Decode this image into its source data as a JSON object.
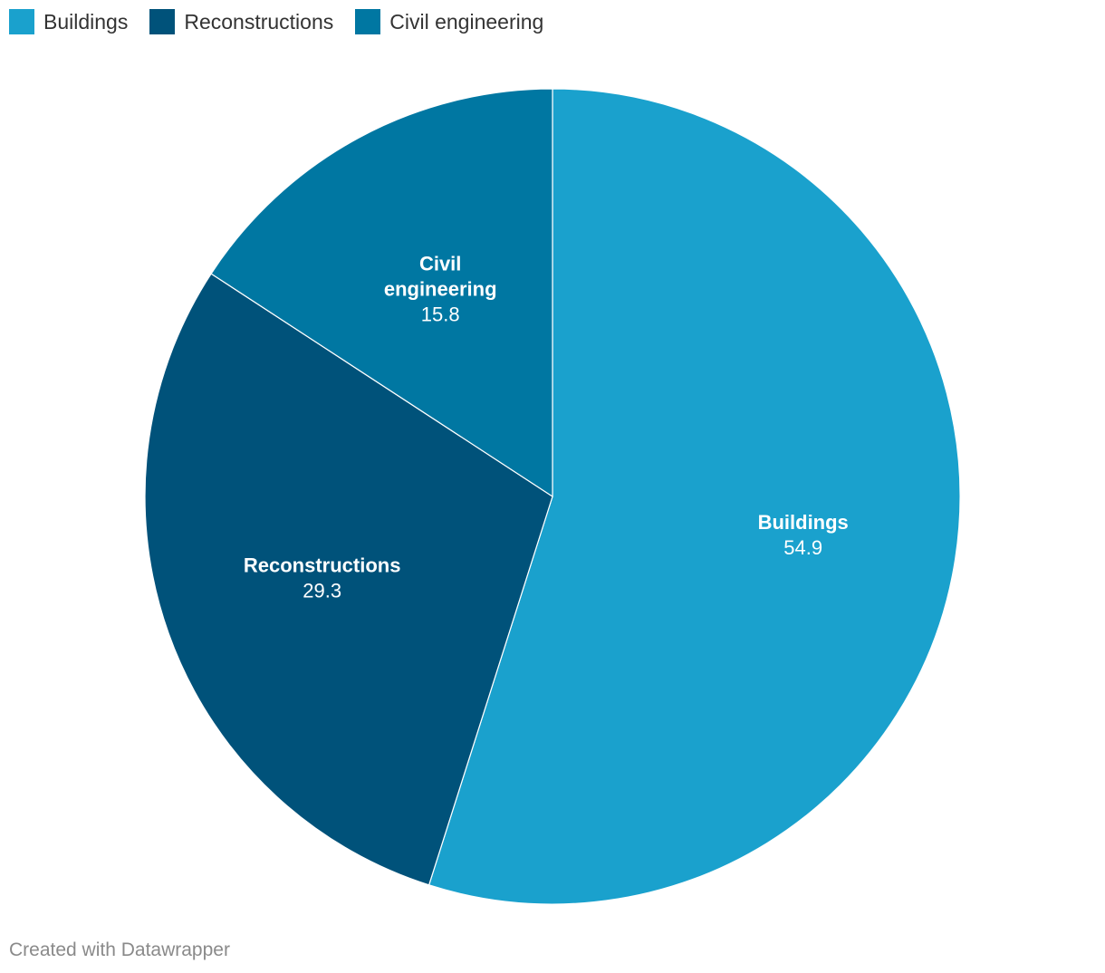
{
  "chart_data": {
    "type": "pie",
    "slices": [
      {
        "label": "Buildings",
        "value": 54.9,
        "display_value": "54.9",
        "color": "#1aa1cd",
        "label_lines": [
          "Buildings"
        ]
      },
      {
        "label": "Reconstructions",
        "value": 29.3,
        "display_value": "29.3",
        "color": "#00527a",
        "label_lines": [
          "Reconstructions"
        ]
      },
      {
        "label": "Civil engineering",
        "value": 15.8,
        "display_value": "15.8",
        "color": "#0077a2",
        "label_lines": [
          "Civil",
          "engineering"
        ]
      }
    ],
    "legend": [
      {
        "label": "Buildings",
        "color": "#1aa1cd"
      },
      {
        "label": "Reconstructions",
        "color": "#00527a"
      },
      {
        "label": "Civil engineering",
        "color": "#0077a2"
      }
    ],
    "legend_position": "top-left",
    "start_angle": "12 o'clock",
    "direction": "clockwise"
  },
  "footer": {
    "credit": "Created with Datawrapper"
  }
}
